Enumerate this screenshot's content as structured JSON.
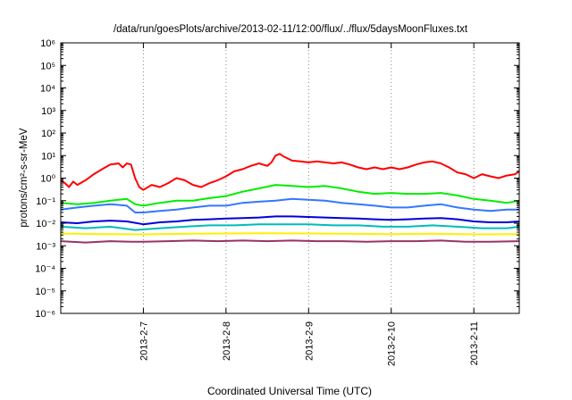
{
  "chart_data": {
    "type": "line",
    "title": "/data/run/goesPlots/archive/2013-02-11/12:00/flux/../flux/5daysMoonFluxes.txt",
    "xlabel": "Coordinated Universal Time (UTC)",
    "ylabel": "protons/cm²-s-sr-MeV",
    "yscale": "log",
    "ylim_exponent": [
      -6,
      6
    ],
    "y_tick_labels": [
      "10⁻⁶",
      "10⁻⁵",
      "10⁻⁴",
      "10⁻³",
      "10⁻²",
      "10⁻¹",
      "10⁰",
      "10¹",
      "10²",
      "10³",
      "10⁴",
      "10⁵",
      "10⁶"
    ],
    "xlim_days": [
      6.0,
      11.55
    ],
    "x_ticks": [
      {
        "day": 7,
        "label": "2013-2-7"
      },
      {
        "day": 8,
        "label": "2013-2-8"
      },
      {
        "day": 9,
        "label": "2013-2-9"
      },
      {
        "day": 10,
        "label": "2013-2-10"
      },
      {
        "day": 11,
        "label": "2013-2-11"
      }
    ],
    "grid": "vertical dotted at x ticks",
    "series": [
      {
        "color": "#ff0000",
        "points": [
          [
            6.0,
            0.8
          ],
          [
            6.05,
            0.6
          ],
          [
            6.1,
            0.4
          ],
          [
            6.15,
            0.7
          ],
          [
            6.2,
            0.5
          ],
          [
            6.3,
            0.8
          ],
          [
            6.4,
            1.5
          ],
          [
            6.5,
            2.5
          ],
          [
            6.6,
            4.0
          ],
          [
            6.7,
            4.5
          ],
          [
            6.75,
            3.0
          ],
          [
            6.8,
            4.5
          ],
          [
            6.85,
            4.0
          ],
          [
            6.9,
            1.0
          ],
          [
            6.95,
            0.4
          ],
          [
            7.0,
            0.3
          ],
          [
            7.1,
            0.5
          ],
          [
            7.2,
            0.4
          ],
          [
            7.3,
            0.6
          ],
          [
            7.4,
            1.0
          ],
          [
            7.5,
            0.8
          ],
          [
            7.6,
            0.5
          ],
          [
            7.7,
            0.4
          ],
          [
            7.8,
            0.6
          ],
          [
            7.9,
            0.8
          ],
          [
            8.0,
            1.2
          ],
          [
            8.1,
            2.0
          ],
          [
            8.2,
            2.5
          ],
          [
            8.3,
            3.5
          ],
          [
            8.4,
            4.5
          ],
          [
            8.5,
            3.5
          ],
          [
            8.55,
            5.0
          ],
          [
            8.6,
            10
          ],
          [
            8.65,
            12
          ],
          [
            8.7,
            9
          ],
          [
            8.8,
            6
          ],
          [
            8.9,
            5.5
          ],
          [
            9.0,
            5.0
          ],
          [
            9.1,
            5.5
          ],
          [
            9.2,
            5.0
          ],
          [
            9.3,
            4.5
          ],
          [
            9.4,
            5.0
          ],
          [
            9.5,
            4.0
          ],
          [
            9.6,
            3.0
          ],
          [
            9.7,
            2.5
          ],
          [
            9.8,
            3.0
          ],
          [
            9.9,
            2.5
          ],
          [
            10.0,
            3.0
          ],
          [
            10.1,
            2.5
          ],
          [
            10.2,
            3.0
          ],
          [
            10.3,
            4.0
          ],
          [
            10.4,
            5.0
          ],
          [
            10.5,
            5.5
          ],
          [
            10.6,
            4.5
          ],
          [
            10.7,
            3.0
          ],
          [
            10.8,
            1.8
          ],
          [
            10.9,
            1.5
          ],
          [
            11.0,
            1.0
          ],
          [
            11.1,
            1.5
          ],
          [
            11.2,
            1.2
          ],
          [
            11.3,
            1.0
          ],
          [
            11.4,
            1.3
          ],
          [
            11.5,
            1.5
          ],
          [
            11.55,
            2.0
          ]
        ]
      },
      {
        "color": "#00ee00",
        "points": [
          [
            6.0,
            0.08
          ],
          [
            6.2,
            0.07
          ],
          [
            6.4,
            0.08
          ],
          [
            6.6,
            0.1
          ],
          [
            6.8,
            0.12
          ],
          [
            6.9,
            0.07
          ],
          [
            7.0,
            0.06
          ],
          [
            7.2,
            0.08
          ],
          [
            7.4,
            0.1
          ],
          [
            7.6,
            0.1
          ],
          [
            7.8,
            0.13
          ],
          [
            8.0,
            0.16
          ],
          [
            8.2,
            0.25
          ],
          [
            8.4,
            0.35
          ],
          [
            8.6,
            0.5
          ],
          [
            8.8,
            0.45
          ],
          [
            9.0,
            0.4
          ],
          [
            9.2,
            0.45
          ],
          [
            9.4,
            0.35
          ],
          [
            9.6,
            0.25
          ],
          [
            9.8,
            0.2
          ],
          [
            10.0,
            0.22
          ],
          [
            10.2,
            0.2
          ],
          [
            10.4,
            0.2
          ],
          [
            10.6,
            0.22
          ],
          [
            10.8,
            0.17
          ],
          [
            11.0,
            0.12
          ],
          [
            11.2,
            0.1
          ],
          [
            11.4,
            0.08
          ],
          [
            11.55,
            0.1
          ]
        ]
      },
      {
        "color": "#3377ff",
        "points": [
          [
            6.0,
            0.04
          ],
          [
            6.2,
            0.05
          ],
          [
            6.4,
            0.06
          ],
          [
            6.6,
            0.07
          ],
          [
            6.8,
            0.06
          ],
          [
            6.9,
            0.03
          ],
          [
            7.0,
            0.03
          ],
          [
            7.2,
            0.035
          ],
          [
            7.4,
            0.04
          ],
          [
            7.6,
            0.05
          ],
          [
            7.8,
            0.06
          ],
          [
            8.0,
            0.06
          ],
          [
            8.2,
            0.08
          ],
          [
            8.4,
            0.09
          ],
          [
            8.6,
            0.1
          ],
          [
            8.8,
            0.12
          ],
          [
            9.0,
            0.11
          ],
          [
            9.2,
            0.1
          ],
          [
            9.4,
            0.08
          ],
          [
            9.6,
            0.07
          ],
          [
            9.8,
            0.06
          ],
          [
            10.0,
            0.05
          ],
          [
            10.2,
            0.05
          ],
          [
            10.4,
            0.06
          ],
          [
            10.6,
            0.07
          ],
          [
            10.8,
            0.05
          ],
          [
            11.0,
            0.04
          ],
          [
            11.2,
            0.035
          ],
          [
            11.4,
            0.04
          ],
          [
            11.55,
            0.04
          ]
        ]
      },
      {
        "color": "#0000dd",
        "points": [
          [
            6.0,
            0.011
          ],
          [
            6.2,
            0.01
          ],
          [
            6.4,
            0.012
          ],
          [
            6.6,
            0.013
          ],
          [
            6.8,
            0.012
          ],
          [
            7.0,
            0.009
          ],
          [
            7.2,
            0.011
          ],
          [
            7.4,
            0.012
          ],
          [
            7.6,
            0.014
          ],
          [
            7.8,
            0.015
          ],
          [
            8.0,
            0.016
          ],
          [
            8.2,
            0.017
          ],
          [
            8.4,
            0.018
          ],
          [
            8.6,
            0.02
          ],
          [
            8.8,
            0.02
          ],
          [
            9.0,
            0.019
          ],
          [
            9.2,
            0.018
          ],
          [
            9.4,
            0.017
          ],
          [
            9.6,
            0.016
          ],
          [
            9.8,
            0.015
          ],
          [
            10.0,
            0.014
          ],
          [
            10.2,
            0.015
          ],
          [
            10.4,
            0.016
          ],
          [
            10.6,
            0.017
          ],
          [
            10.8,
            0.015
          ],
          [
            11.0,
            0.012
          ],
          [
            11.2,
            0.011
          ],
          [
            11.4,
            0.011
          ],
          [
            11.55,
            0.012
          ]
        ]
      },
      {
        "color": "#00bbbb",
        "points": [
          [
            6.0,
            0.007
          ],
          [
            6.3,
            0.006
          ],
          [
            6.6,
            0.007
          ],
          [
            6.9,
            0.005
          ],
          [
            7.2,
            0.006
          ],
          [
            7.5,
            0.007
          ],
          [
            7.8,
            0.008
          ],
          [
            8.1,
            0.008
          ],
          [
            8.4,
            0.009
          ],
          [
            8.7,
            0.009
          ],
          [
            9.0,
            0.009
          ],
          [
            9.3,
            0.008
          ],
          [
            9.6,
            0.008
          ],
          [
            9.9,
            0.007
          ],
          [
            10.2,
            0.007
          ],
          [
            10.5,
            0.008
          ],
          [
            10.8,
            0.007
          ],
          [
            11.1,
            0.006
          ],
          [
            11.4,
            0.006
          ],
          [
            11.55,
            0.007
          ]
        ]
      },
      {
        "color": "#ffee00",
        "points": [
          [
            6.0,
            0.0035
          ],
          [
            6.5,
            0.0033
          ],
          [
            7.0,
            0.0032
          ],
          [
            7.5,
            0.0034
          ],
          [
            8.0,
            0.0035
          ],
          [
            8.5,
            0.0036
          ],
          [
            9.0,
            0.0035
          ],
          [
            9.5,
            0.0034
          ],
          [
            10.0,
            0.0033
          ],
          [
            10.5,
            0.0034
          ],
          [
            11.0,
            0.0032
          ],
          [
            11.55,
            0.0033
          ]
        ]
      },
      {
        "color": "#993366",
        "points": [
          [
            6.0,
            0.0016
          ],
          [
            6.3,
            0.0014
          ],
          [
            6.6,
            0.0016
          ],
          [
            6.85,
            0.0015
          ],
          [
            7.0,
            0.0015
          ],
          [
            7.3,
            0.0016
          ],
          [
            7.6,
            0.0017
          ],
          [
            7.9,
            0.0016
          ],
          [
            8.2,
            0.0017
          ],
          [
            8.5,
            0.0016
          ],
          [
            8.8,
            0.0017
          ],
          [
            9.1,
            0.0016
          ],
          [
            9.4,
            0.0016
          ],
          [
            9.7,
            0.0015
          ],
          [
            10.0,
            0.0016
          ],
          [
            10.3,
            0.0016
          ],
          [
            10.6,
            0.0017
          ],
          [
            10.9,
            0.0015
          ],
          [
            11.2,
            0.0015
          ],
          [
            11.55,
            0.0016
          ]
        ]
      }
    ]
  }
}
